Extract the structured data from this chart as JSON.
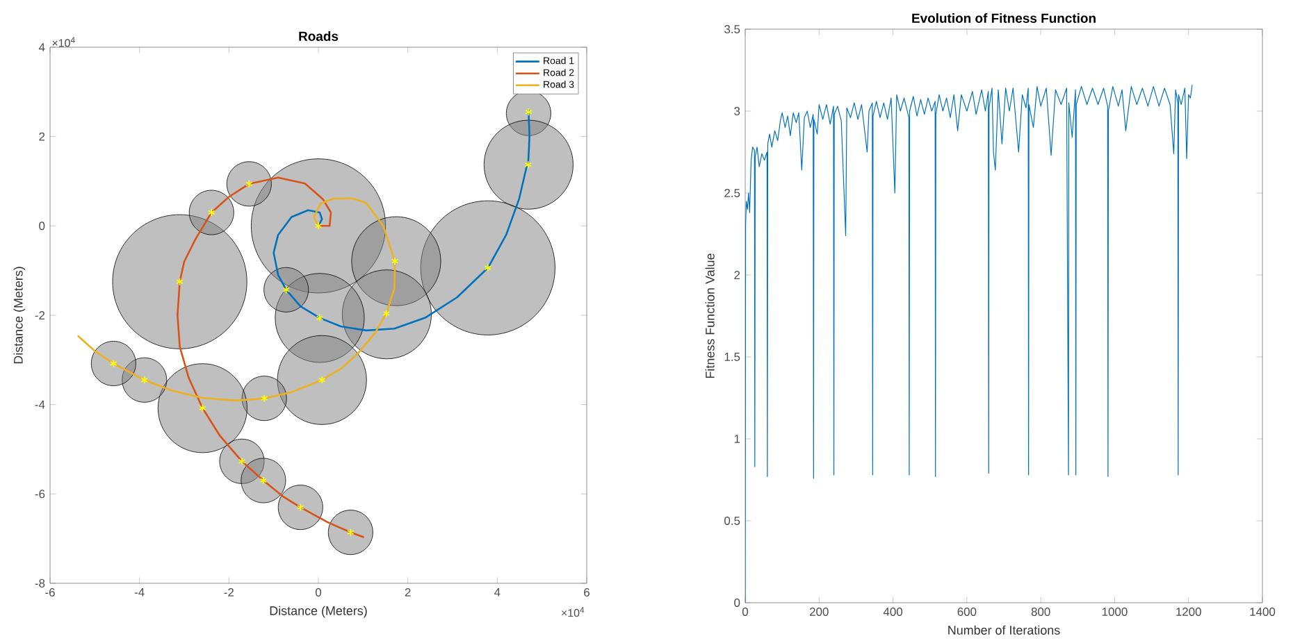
{
  "chart_data": [
    {
      "type": "line",
      "title": "Roads",
      "xlabel": "Distance (Meters)",
      "ylabel": "Distance (Meters)",
      "xlim": [
        -6,
        6
      ],
      "ylim": [
        -8,
        4
      ],
      "xticks": [
        -6,
        -4,
        -2,
        0,
        2,
        4,
        6
      ],
      "yticks": [
        -8,
        -6,
        -4,
        -2,
        0,
        2,
        4
      ],
      "annotations": [
        "×10$^{4}$",
        "×10$^{4}$"
      ],
      "legend": "top right",
      "series": [
        {
          "type": "bubble",
          "color": "#808080",
          "x": [
            4.7,
            4.7,
            3.79,
            0,
            1.74,
            1.53,
            0.03,
            -0.72,
            -3.1,
            -2.39,
            -1.55,
            0.08,
            -1.21,
            -2.59,
            -3.89,
            -4.58,
            -1.71,
            -1.23,
            -0.4,
            0.72
          ],
          "values": [
            2.52,
            1.37,
            -0.94,
            0,
            -0.79,
            -1.98,
            -2.06,
            -1.43,
            -1.25,
            0.3,
            0.94,
            -3.45,
            -3.86,
            -4.08,
            -3.45,
            -3.08,
            -5.27,
            -5.7,
            -6.3,
            -6.86
          ],
          "sizes": [
            0.11,
            0.44,
            1,
            1,
            0.44,
            0.44,
            0.44,
            0.11,
            1,
            0.11,
            0.11,
            0.44,
            0.11,
            0.44,
            0.11,
            0.11,
            0.11,
            0.11,
            0.11,
            0.11
          ]
        },
        {
          "type": "line",
          "name": "Road 1",
          "color": "#0072bd",
          "x": [
            0,
            0.08,
            0.03,
            -0.23,
            -0.6,
            -0.9,
            -1.0,
            -0.9,
            -0.72,
            -0.4,
            0.03,
            0.5,
            1.07,
            1.7,
            2.4,
            3.1,
            3.79,
            4.2,
            4.49,
            4.65,
            4.69,
            4.72,
            4.7,
            4.7
          ],
          "values": [
            0,
            0.15,
            0.3,
            0.35,
            0.2,
            -0.2,
            -0.6,
            -1.1,
            -1.43,
            -1.8,
            -2.06,
            -2.25,
            -2.34,
            -2.3,
            -2.05,
            -1.6,
            -0.94,
            -0.2,
            0.61,
            1.3,
            1.37,
            2.0,
            2.55,
            2.6
          ]
        },
        {
          "type": "line",
          "name": "Road 2",
          "color": "#d95319",
          "x": [
            0,
            0.25,
            0.28,
            0.1,
            -0.3,
            -0.9,
            -1.55,
            -2.0,
            -2.39,
            -2.75,
            -3.0,
            -3.1,
            -3.15,
            -3.1,
            -2.9,
            -2.59,
            -2.2,
            -1.71,
            -1.23,
            -0.8,
            -0.4,
            0.2,
            0.72,
            1.02
          ],
          "values": [
            0,
            0,
            0.3,
            0.6,
            0.95,
            1.08,
            0.94,
            0.65,
            0.3,
            -0.3,
            -0.8,
            -1.25,
            -2.0,
            -2.7,
            -3.4,
            -4.08,
            -4.7,
            -5.27,
            -5.7,
            -6.05,
            -6.3,
            -6.63,
            -6.86,
            -6.97
          ]
        },
        {
          "type": "line",
          "name": "Road 3",
          "color": "#edb120",
          "x": [
            0,
            -0.1,
            0.05,
            0.34,
            0.75,
            1.07,
            1.45,
            1.71,
            1.7,
            1.52,
            1.27,
            0.88,
            0.5,
            0.08,
            -0.6,
            -1.21,
            -1.83,
            -2.6,
            -3.3,
            -3.89,
            -4.58,
            -5.0,
            -5.38
          ],
          "values": [
            0,
            0.2,
            0.5,
            0.61,
            0.62,
            0.51,
            0,
            -0.79,
            -1.4,
            -1.96,
            -2.39,
            -2.86,
            -3.2,
            -3.45,
            -3.72,
            -3.86,
            -3.91,
            -3.85,
            -3.68,
            -3.45,
            -3.08,
            -2.8,
            -2.46
          ]
        },
        {
          "type": "scatter",
          "color": "#ffff00",
          "marker": "cross",
          "x": [
            0,
            4.7,
            4.69,
            3.79,
            0.03,
            -0.72,
            -1.55,
            -2.39,
            -3.1,
            1.71,
            1.52,
            0.08,
            -1.21,
            -3.89,
            -4.58,
            -2.59,
            -1.71,
            -1.23,
            -0.4,
            0.72
          ],
          "values": [
            0,
            2.55,
            1.37,
            -0.94,
            -2.06,
            -1.43,
            0.94,
            0.3,
            -1.25,
            -0.79,
            -1.96,
            -3.45,
            -3.86,
            -3.45,
            -3.08,
            -4.08,
            -5.27,
            -5.7,
            -6.3,
            -6.86
          ]
        }
      ]
    },
    {
      "type": "line",
      "title": "Evolution of Fitness Function",
      "xlabel": "Number of Iterations",
      "ylabel": "Fitness Function Value",
      "xlim": [
        0,
        1400
      ],
      "ylim": [
        0,
        3.5
      ],
      "xticks": [
        0,
        200,
        400,
        600,
        800,
        1000,
        1200,
        1400
      ],
      "yticks": [
        0,
        0.5,
        1,
        1.5,
        2,
        2.5,
        3,
        3.5
      ],
      "color": "#0072bd",
      "x": [
        0,
        1,
        3,
        6,
        9,
        12,
        16,
        20,
        25,
        26,
        27,
        32,
        38,
        45,
        52,
        59,
        60,
        61,
        66,
        72,
        80,
        88,
        95,
        100,
        108,
        115,
        122,
        130,
        138,
        145,
        153,
        160,
        168,
        176,
        184,
        185,
        186,
        195,
        200,
        210,
        220,
        230,
        239,
        240,
        241,
        250,
        260,
        272,
        275,
        285,
        295,
        305,
        315,
        330,
        335,
        344,
        345,
        346,
        355,
        365,
        375,
        385,
        395,
        405,
        410,
        420,
        430,
        443,
        444,
        445,
        455,
        465,
        475,
        485,
        495,
        505,
        514,
        515,
        516,
        525,
        535,
        545,
        555,
        565,
        575,
        585,
        600,
        615,
        625,
        640,
        650,
        658,
        659,
        660,
        668,
        672,
        677,
        685,
        695,
        705,
        715,
        725,
        740,
        750,
        760,
        766,
        767,
        768,
        780,
        790,
        800,
        815,
        828,
        840,
        855,
        870,
        875,
        876,
        885,
        894,
        895,
        896,
        910,
        925,
        940,
        955,
        970,
        981,
        982,
        983,
        995,
        1010,
        1020,
        1030,
        1045,
        1060,
        1075,
        1090,
        1105,
        1120,
        1135,
        1150,
        1160,
        1165,
        1171,
        1172,
        1173,
        1180,
        1190,
        1195,
        1200,
        1205,
        1210
      ],
      "values": [
        0,
        2.3,
        2.45,
        2.4,
        2.5,
        2.38,
        2.7,
        2.78,
        2.76,
        0.83,
        2.72,
        2.78,
        2.66,
        2.74,
        2.7,
        2.75,
        0.77,
        2.8,
        2.86,
        2.78,
        2.88,
        2.82,
        2.94,
        2.99,
        2.9,
        2.97,
        2.85,
        2.99,
        2.93,
        2.99,
        2.64,
        2.96,
        3.0,
        2.9,
        2.98,
        0.76,
        2.95,
        2.86,
        3.04,
        2.95,
        3.04,
        2.92,
        3.03,
        0.78,
        2.98,
        3.03,
        2.94,
        2.24,
        3.02,
        2.96,
        3.05,
        2.95,
        3.04,
        2.75,
        3.0,
        3.05,
        0.78,
        2.97,
        3.06,
        2.96,
        3.05,
        2.95,
        3.08,
        2.5,
        3.1,
        3.0,
        3.08,
        2.96,
        0.78,
        3.0,
        3.09,
        2.97,
        3.07,
        2.98,
        3.08,
        3.0,
        3.06,
        0.77,
        2.98,
        3.1,
        3.0,
        3.08,
        2.96,
        3.1,
        2.88,
        3.1,
        3.0,
        3.12,
        2.98,
        3.13,
        3.0,
        3.12,
        0.79,
        3.02,
        3.14,
        2.75,
        2.64,
        3.13,
        2.8,
        3.14,
        3.0,
        3.14,
        2.75,
        3.1,
        3.02,
        3.14,
        0.78,
        3.04,
        2.9,
        3.15,
        3.03,
        3.14,
        2.73,
        3.13,
        3.04,
        3.14,
        0.78,
        3.05,
        2.84,
        3.13,
        0.78,
        3.04,
        3.15,
        3.04,
        3.14,
        3.04,
        3.14,
        3.03,
        0.77,
        3.0,
        3.15,
        3.03,
        3.13,
        2.88,
        3.15,
        3.04,
        3.14,
        3.03,
        3.15,
        3.03,
        3.14,
        3.04,
        2.74,
        3.13,
        3.05,
        0.78,
        3.1,
        3.04,
        3.14,
        2.71,
        3.1,
        3.08,
        3.16
      ]
    }
  ]
}
